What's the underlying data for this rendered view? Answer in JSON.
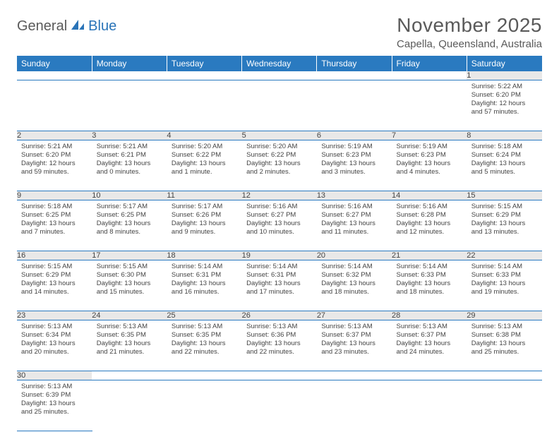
{
  "logo": {
    "part1": "General",
    "part2": "Blue"
  },
  "title": "November 2025",
  "location": "Capella, Queensland, Australia",
  "header_bg": "#2a7ac0",
  "weekdays": [
    "Sunday",
    "Monday",
    "Tuesday",
    "Wednesday",
    "Thursday",
    "Friday",
    "Saturday"
  ],
  "weeks": [
    {
      "days": [
        {
          "num": "",
          "lines": []
        },
        {
          "num": "",
          "lines": []
        },
        {
          "num": "",
          "lines": []
        },
        {
          "num": "",
          "lines": []
        },
        {
          "num": "",
          "lines": []
        },
        {
          "num": "",
          "lines": []
        },
        {
          "num": "1",
          "lines": [
            "Sunrise: 5:22 AM",
            "Sunset: 6:20 PM",
            "Daylight: 12 hours and 57 minutes."
          ]
        }
      ]
    },
    {
      "days": [
        {
          "num": "2",
          "lines": [
            "Sunrise: 5:21 AM",
            "Sunset: 6:20 PM",
            "Daylight: 12 hours and 59 minutes."
          ]
        },
        {
          "num": "3",
          "lines": [
            "Sunrise: 5:21 AM",
            "Sunset: 6:21 PM",
            "Daylight: 13 hours and 0 minutes."
          ]
        },
        {
          "num": "4",
          "lines": [
            "Sunrise: 5:20 AM",
            "Sunset: 6:22 PM",
            "Daylight: 13 hours and 1 minute."
          ]
        },
        {
          "num": "5",
          "lines": [
            "Sunrise: 5:20 AM",
            "Sunset: 6:22 PM",
            "Daylight: 13 hours and 2 minutes."
          ]
        },
        {
          "num": "6",
          "lines": [
            "Sunrise: 5:19 AM",
            "Sunset: 6:23 PM",
            "Daylight: 13 hours and 3 minutes."
          ]
        },
        {
          "num": "7",
          "lines": [
            "Sunrise: 5:19 AM",
            "Sunset: 6:23 PM",
            "Daylight: 13 hours and 4 minutes."
          ]
        },
        {
          "num": "8",
          "lines": [
            "Sunrise: 5:18 AM",
            "Sunset: 6:24 PM",
            "Daylight: 13 hours and 5 minutes."
          ]
        }
      ]
    },
    {
      "days": [
        {
          "num": "9",
          "lines": [
            "Sunrise: 5:18 AM",
            "Sunset: 6:25 PM",
            "Daylight: 13 hours and 7 minutes."
          ]
        },
        {
          "num": "10",
          "lines": [
            "Sunrise: 5:17 AM",
            "Sunset: 6:25 PM",
            "Daylight: 13 hours and 8 minutes."
          ]
        },
        {
          "num": "11",
          "lines": [
            "Sunrise: 5:17 AM",
            "Sunset: 6:26 PM",
            "Daylight: 13 hours and 9 minutes."
          ]
        },
        {
          "num": "12",
          "lines": [
            "Sunrise: 5:16 AM",
            "Sunset: 6:27 PM",
            "Daylight: 13 hours and 10 minutes."
          ]
        },
        {
          "num": "13",
          "lines": [
            "Sunrise: 5:16 AM",
            "Sunset: 6:27 PM",
            "Daylight: 13 hours and 11 minutes."
          ]
        },
        {
          "num": "14",
          "lines": [
            "Sunrise: 5:16 AM",
            "Sunset: 6:28 PM",
            "Daylight: 13 hours and 12 minutes."
          ]
        },
        {
          "num": "15",
          "lines": [
            "Sunrise: 5:15 AM",
            "Sunset: 6:29 PM",
            "Daylight: 13 hours and 13 minutes."
          ]
        }
      ]
    },
    {
      "days": [
        {
          "num": "16",
          "lines": [
            "Sunrise: 5:15 AM",
            "Sunset: 6:29 PM",
            "Daylight: 13 hours and 14 minutes."
          ]
        },
        {
          "num": "17",
          "lines": [
            "Sunrise: 5:15 AM",
            "Sunset: 6:30 PM",
            "Daylight: 13 hours and 15 minutes."
          ]
        },
        {
          "num": "18",
          "lines": [
            "Sunrise: 5:14 AM",
            "Sunset: 6:31 PM",
            "Daylight: 13 hours and 16 minutes."
          ]
        },
        {
          "num": "19",
          "lines": [
            "Sunrise: 5:14 AM",
            "Sunset: 6:31 PM",
            "Daylight: 13 hours and 17 minutes."
          ]
        },
        {
          "num": "20",
          "lines": [
            "Sunrise: 5:14 AM",
            "Sunset: 6:32 PM",
            "Daylight: 13 hours and 18 minutes."
          ]
        },
        {
          "num": "21",
          "lines": [
            "Sunrise: 5:14 AM",
            "Sunset: 6:33 PM",
            "Daylight: 13 hours and 18 minutes."
          ]
        },
        {
          "num": "22",
          "lines": [
            "Sunrise: 5:14 AM",
            "Sunset: 6:33 PM",
            "Daylight: 13 hours and 19 minutes."
          ]
        }
      ]
    },
    {
      "days": [
        {
          "num": "23",
          "lines": [
            "Sunrise: 5:13 AM",
            "Sunset: 6:34 PM",
            "Daylight: 13 hours and 20 minutes."
          ]
        },
        {
          "num": "24",
          "lines": [
            "Sunrise: 5:13 AM",
            "Sunset: 6:35 PM",
            "Daylight: 13 hours and 21 minutes."
          ]
        },
        {
          "num": "25",
          "lines": [
            "Sunrise: 5:13 AM",
            "Sunset: 6:35 PM",
            "Daylight: 13 hours and 22 minutes."
          ]
        },
        {
          "num": "26",
          "lines": [
            "Sunrise: 5:13 AM",
            "Sunset: 6:36 PM",
            "Daylight: 13 hours and 22 minutes."
          ]
        },
        {
          "num": "27",
          "lines": [
            "Sunrise: 5:13 AM",
            "Sunset: 6:37 PM",
            "Daylight: 13 hours and 23 minutes."
          ]
        },
        {
          "num": "28",
          "lines": [
            "Sunrise: 5:13 AM",
            "Sunset: 6:37 PM",
            "Daylight: 13 hours and 24 minutes."
          ]
        },
        {
          "num": "29",
          "lines": [
            "Sunrise: 5:13 AM",
            "Sunset: 6:38 PM",
            "Daylight: 13 hours and 25 minutes."
          ]
        }
      ]
    },
    {
      "days": [
        {
          "num": "30",
          "lines": [
            "Sunrise: 5:13 AM",
            "Sunset: 6:39 PM",
            "Daylight: 13 hours and 25 minutes."
          ]
        },
        {
          "num": "",
          "lines": []
        },
        {
          "num": "",
          "lines": []
        },
        {
          "num": "",
          "lines": []
        },
        {
          "num": "",
          "lines": []
        },
        {
          "num": "",
          "lines": []
        },
        {
          "num": "",
          "lines": []
        }
      ]
    }
  ]
}
